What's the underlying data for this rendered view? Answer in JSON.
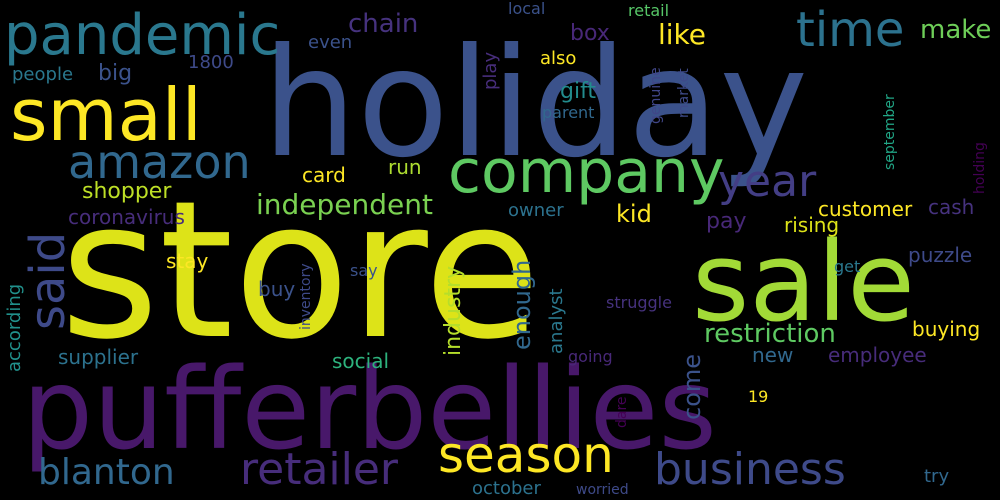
{
  "background_color": "#000000",
  "palette": {
    "yellow": "#dde318",
    "lime": "#a2da37",
    "green": "#5ec962",
    "mint": "#44bf70",
    "teal": "#21918c",
    "blue": "#3b528b",
    "steel": "#31688e",
    "indigo": "#433e85",
    "purple": "#440154"
  },
  "words": [
    {
      "text": "store",
      "color": "#dde318"
    },
    {
      "text": "holiday",
      "color": "#3b528b"
    },
    {
      "text": "pufferbellies",
      "color": "#48186a"
    },
    {
      "text": "sale",
      "color": "#a2da37"
    },
    {
      "text": "small",
      "color": "#fde725"
    },
    {
      "text": "company",
      "color": "#5ec962"
    },
    {
      "text": "pandemic",
      "color": "#2a788e"
    },
    {
      "text": "amazon",
      "color": "#31688e"
    },
    {
      "text": "business",
      "color": "#3e4a89"
    },
    {
      "text": "season",
      "color": "#fde725"
    },
    {
      "text": "retailer",
      "color": "#472d7b"
    },
    {
      "text": "blanton",
      "color": "#31688e"
    },
    {
      "text": "said",
      "color": "#3e4a89"
    },
    {
      "text": "time",
      "color": "#2c728e"
    },
    {
      "text": "year",
      "color": "#433e85"
    },
    {
      "text": "independent",
      "color": "#7ad151"
    },
    {
      "text": "restriction",
      "color": "#5ec962"
    },
    {
      "text": "like",
      "color": "#fde725"
    },
    {
      "text": "make",
      "color": "#6ece58"
    },
    {
      "text": "chain",
      "color": "#46327e"
    },
    {
      "text": "shopper",
      "color": "#bddf26"
    },
    {
      "text": "enough",
      "color": "#31688e"
    },
    {
      "text": "industry",
      "color": "#b5de2b"
    },
    {
      "text": "come",
      "color": "#3b528b"
    },
    {
      "text": "kid",
      "color": "#fde725"
    },
    {
      "text": "box",
      "color": "#482878"
    },
    {
      "text": "big",
      "color": "#3b528b"
    },
    {
      "text": "gift",
      "color": "#228c8d"
    },
    {
      "text": "card",
      "color": "#fde725"
    },
    {
      "text": "run",
      "color": "#addc30"
    },
    {
      "text": "customer",
      "color": "#fde725"
    },
    {
      "text": "rising",
      "color": "#dde318"
    },
    {
      "text": "pay",
      "color": "#482878"
    },
    {
      "text": "coronavirus",
      "color": "#472d7b"
    },
    {
      "text": "owner",
      "color": "#2c728e"
    },
    {
      "text": "buying",
      "color": "#fde725"
    },
    {
      "text": "puzzle",
      "color": "#3e4a89"
    },
    {
      "text": "cash",
      "color": "#46327e"
    },
    {
      "text": "employee",
      "color": "#472c7a"
    },
    {
      "text": "new",
      "color": "#31688e"
    },
    {
      "text": "social",
      "color": "#2db27d"
    },
    {
      "text": "supplier",
      "color": "#2c728e"
    },
    {
      "text": "stay",
      "color": "#fde725"
    },
    {
      "text": "buy",
      "color": "#3b528b"
    },
    {
      "text": "according",
      "color": "#21918c"
    },
    {
      "text": "analyst",
      "color": "#2a788e"
    },
    {
      "text": "also",
      "color": "#fde725"
    },
    {
      "text": "even",
      "color": "#3b528b"
    },
    {
      "text": "people",
      "color": "#2a788e"
    },
    {
      "text": "1800",
      "color": "#3e4a89"
    },
    {
      "text": "local",
      "color": "#3b528b"
    },
    {
      "text": "retail",
      "color": "#56c667"
    },
    {
      "text": "play",
      "color": "#472d7b"
    },
    {
      "text": "genuine",
      "color": "#404688"
    },
    {
      "text": "market",
      "color": "#3e4a89"
    },
    {
      "text": "parent",
      "color": "#31688e"
    },
    {
      "text": "september",
      "color": "#21a585"
    },
    {
      "text": "holding",
      "color": "#440154"
    },
    {
      "text": "say",
      "color": "#3b528b"
    },
    {
      "text": "inventory",
      "color": "#3e4a89"
    },
    {
      "text": "get",
      "color": "#2a788e"
    },
    {
      "text": "struggle",
      "color": "#46327e"
    },
    {
      "text": "going",
      "color": "#482878"
    },
    {
      "text": "19",
      "color": "#fde725"
    },
    {
      "text": "dare",
      "color": "#440154"
    },
    {
      "text": "october",
      "color": "#2c728e"
    },
    {
      "text": "worried",
      "color": "#3e4a89"
    },
    {
      "text": "try",
      "color": "#31688e"
    }
  ]
}
